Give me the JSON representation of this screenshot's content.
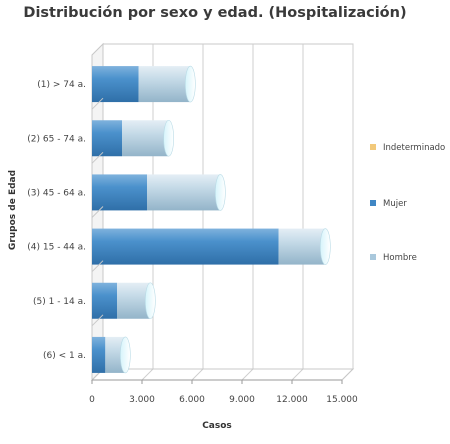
{
  "chart_data": {
    "type": "bar",
    "orientation": "horizontal",
    "stacked": true,
    "style": "3d-cylinder",
    "title": "Distribución por sexo y edad. (Hospitalización)",
    "xlabel": "Casos",
    "ylabel": "Grupos de Edad",
    "categories": [
      "(1) > 74 a.",
      "(2) 65 - 74 a.",
      "(3) 45 - 64 a.",
      "(4) 15 - 44 a.",
      "(5) 1 - 14 a.",
      "(6) < 1 a."
    ],
    "series": [
      {
        "name": "Mujer",
        "color": "#3f86c4",
        "values": [
          2800,
          1800,
          3300,
          11200,
          1500,
          800
        ]
      },
      {
        "name": "Hombre",
        "color": "#a9c8dc",
        "values": [
          3100,
          2800,
          4400,
          2800,
          2000,
          1200
        ]
      },
      {
        "name": "Indeterminado",
        "color": "#f2c97a",
        "values": [
          0,
          0,
          0,
          0,
          0,
          0
        ]
      }
    ],
    "legend_order": [
      "Indeterminado",
      "Mujer",
      "Hombre"
    ],
    "legend_position": "right",
    "xlim": [
      0,
      15000
    ],
    "xticks": [
      0,
      3000,
      6000,
      9000,
      12000,
      15000
    ],
    "xtick_labels": [
      "0",
      "3.000",
      "6.000",
      "9.000",
      "12.000",
      "15.000"
    ],
    "grid": true
  }
}
